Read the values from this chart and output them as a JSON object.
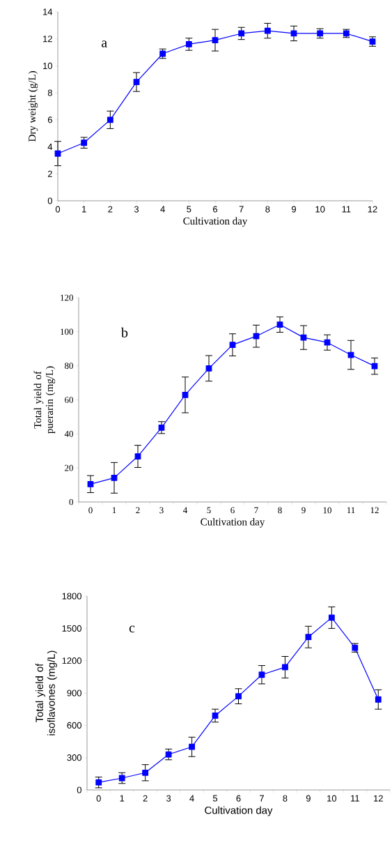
{
  "chart_data": [
    {
      "type": "line",
      "x": [
        0,
        1,
        2,
        3,
        4,
        5,
        6,
        7,
        8,
        9,
        10,
        11,
        12
      ],
      "xlim": [
        0,
        12
      ],
      "xticks": [
        0,
        1,
        2,
        3,
        4,
        5,
        6,
        7,
        8,
        9,
        10,
        11,
        12
      ],
      "values": [
        3.5,
        4.3,
        6.0,
        8.8,
        10.9,
        11.6,
        11.9,
        12.4,
        12.6,
        12.4,
        12.4,
        12.4,
        11.8
      ],
      "errors": [
        0.9,
        0.4,
        0.65,
        0.7,
        0.35,
        0.45,
        0.8,
        0.45,
        0.55,
        0.55,
        0.35,
        0.3,
        0.35
      ],
      "color": "#0000ff",
      "marker": "square",
      "ylim": [
        0,
        14
      ],
      "yticks": [
        0,
        2,
        4,
        6,
        8,
        10,
        12,
        14
      ],
      "xlabel": "Cultivation day",
      "ylabel": "Dry weight (g/L)",
      "annotations": [
        "a"
      ]
    },
    {
      "type": "line",
      "categories": [
        "0",
        "1",
        "2",
        "3",
        "4",
        "5",
        "6",
        "7",
        "8",
        "9",
        "10",
        "11",
        "12"
      ],
      "values": [
        10.5,
        14.2,
        26.8,
        43.7,
        62.9,
        78.5,
        92.3,
        97.4,
        104.2,
        96.6,
        93.7,
        86.4,
        79.8
      ],
      "errors": [
        5,
        9,
        6.5,
        3.5,
        10.5,
        7.5,
        6.5,
        6.5,
        4.5,
        7,
        4.5,
        8.5,
        4.8
      ],
      "color": "#0000ff",
      "marker": "square",
      "ylim": [
        0,
        120
      ],
      "yticks": [
        0,
        20,
        40,
        60,
        80,
        100,
        120
      ],
      "xlabel": "Cultivation day",
      "ylabel": "Total yield of puerarin (mg/L)",
      "annotations": [
        "b"
      ]
    },
    {
      "type": "line",
      "categories": [
        "0",
        "1",
        "2",
        "3",
        "4",
        "5",
        "6",
        "7",
        "8",
        "9",
        "10",
        "11",
        "12"
      ],
      "values": [
        70,
        110,
        160,
        330,
        400,
        690,
        870,
        1070,
        1140,
        1420,
        1600,
        1320,
        840
      ],
      "errors": [
        50,
        50,
        75,
        50,
        90,
        60,
        70,
        85,
        100,
        100,
        100,
        40,
        90
      ],
      "color": "#0000ff",
      "marker": "square",
      "ylim": [
        0,
        1800
      ],
      "yticks": [
        0,
        300,
        600,
        900,
        1200,
        1500,
        1800
      ],
      "xlabel": "Cultivation day",
      "ylabel": "Total yield of isoflavones (mg/L)",
      "annotations": [
        "c"
      ]
    }
  ]
}
